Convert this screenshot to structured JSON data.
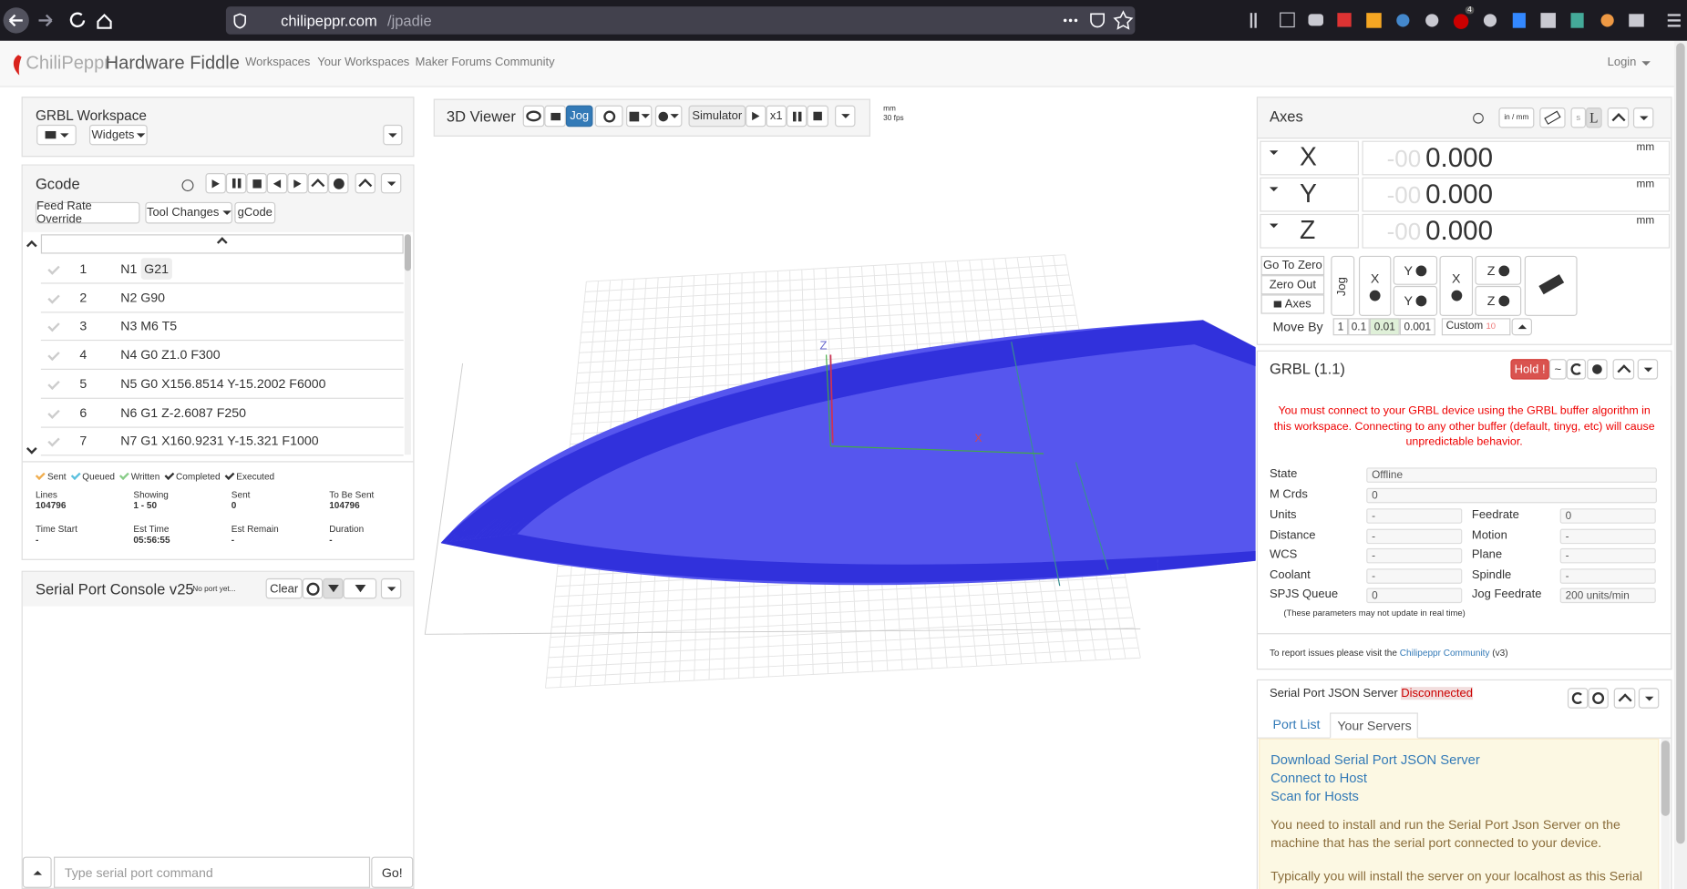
{
  "browser": {
    "host": "chilipeppr.com",
    "path": "/jpadie",
    "badge": "4"
  },
  "navbar": {
    "brand_light": "ChiliPeppr",
    "brand": "Hardware Fiddle",
    "links": [
      "Workspaces",
      "Your Workspaces",
      "Maker Forums Community"
    ],
    "login": "Login"
  },
  "workspace": {
    "title": "GRBL Workspace",
    "widgets_button": "Widgets"
  },
  "gcode": {
    "title": "Gcode",
    "tabs": [
      "Feed Rate Override",
      "Tool Changes",
      "gCode"
    ],
    "lines": [
      {
        "number": 1,
        "code": "N1",
        "token": "G21"
      },
      {
        "number": 2,
        "code": "N2 G90"
      },
      {
        "number": 3,
        "code": "N3 M6 T5"
      },
      {
        "number": 4,
        "code": "N4 G0 Z1.0 F300"
      },
      {
        "number": 5,
        "code": "N5 G0 X156.8514 Y-15.2002 F6000"
      },
      {
        "number": 6,
        "code": "N6 G1 Z-2.6087 F250"
      },
      {
        "number": 7,
        "code": "N7 G1 X160.9231 Y-15.321 F1000"
      }
    ],
    "legend": [
      "Sent",
      "Queued",
      "Written",
      "Completed",
      "Executed"
    ],
    "stats": [
      {
        "label": "Lines",
        "value": "104796"
      },
      {
        "label": "Showing",
        "value": "1 - 50"
      },
      {
        "label": "Sent",
        "value": "0"
      },
      {
        "label": "To Be Sent",
        "value": "104796"
      },
      {
        "label": "Time Start",
        "value": "-"
      },
      {
        "label": "Est Time",
        "value": "05:56:55"
      },
      {
        "label": "Est Remain",
        "value": "-"
      },
      {
        "label": "Duration",
        "value": "-"
      }
    ]
  },
  "console": {
    "title": "Serial Port Console v25",
    "status": "No port yet...",
    "clear": "Clear",
    "placeholder": "Type serial port command",
    "send": "Go!"
  },
  "viewer": {
    "title": "3D Viewer",
    "jog": "Jog",
    "simulator": "Simulator",
    "speed": "x1",
    "units": "mm",
    "fps": "30 fps",
    "axis_labels": [
      "Z",
      "X"
    ]
  },
  "axes": {
    "title": "Axes",
    "unit_toggle": "in / mm",
    "unit_buttons": [
      "s",
      "L"
    ],
    "rows": [
      {
        "axis": "X",
        "ghost": "-00",
        "value": "0.000",
        "unit": "mm"
      },
      {
        "axis": "Y",
        "ghost": "-00",
        "value": "0.000",
        "unit": "mm"
      },
      {
        "axis": "Z",
        "ghost": "-00",
        "value": "0.000",
        "unit": "mm"
      }
    ],
    "side_buttons": [
      "Go To Zero",
      "Zero Out",
      "Axes"
    ],
    "jog": "Jog",
    "jog_buttons": [
      "X",
      "Y",
      "Y",
      "X",
      "Z",
      "Z"
    ],
    "move_by": {
      "label": "Move By",
      "steps": [
        "1",
        "0.1",
        "0.01",
        "0.001"
      ],
      "custom": "Custom",
      "custom_value": "10"
    }
  },
  "grbl": {
    "title": "GRBL (1.1)",
    "hold": "Hold !",
    "tilde": "~",
    "warning": "You must connect to your GRBL device using the GRBL buffer algorithm in this workspace. Connecting to any other buffer (default, tinyg, etc) will cause unpredictable behavior.",
    "fields_wide": [
      {
        "label": "State",
        "value": "Offline"
      },
      {
        "label": "M Crds",
        "value": "0"
      }
    ],
    "fields": [
      [
        {
          "label": "Units",
          "value": "-"
        },
        {
          "label": "Feedrate",
          "value": "0"
        }
      ],
      [
        {
          "label": "Distance",
          "value": "-"
        },
        {
          "label": "Motion",
          "value": "-"
        }
      ],
      [
        {
          "label": "WCS",
          "value": "-"
        },
        {
          "label": "Plane",
          "value": "-"
        }
      ],
      [
        {
          "label": "Coolant",
          "value": "-"
        },
        {
          "label": "Spindle",
          "value": "-"
        }
      ],
      [
        {
          "label": "SPJS Queue",
          "value": "0"
        },
        {
          "label": "Jog Feedrate",
          "value": "200 units/min"
        }
      ]
    ],
    "note": "(These parameters may not update in real time)",
    "report": "To report issues please visit the",
    "report_link": "Chilipeppr Community",
    "version": "(v3)"
  },
  "spjs": {
    "title": "Serial Port JSON Server",
    "status": "Disconnected",
    "tabs": [
      "Port List",
      "Your Servers"
    ],
    "links": [
      "Download Serial Port JSON Server",
      "Connect to Host",
      "Scan for Hosts"
    ],
    "paragraphs": [
      "You need to install and run the Serial Port Json Server on the machine that has the serial port connected to your device.",
      "Typically you will install the server on your localhost as this Serial Port Widget first looks there for a local connection."
    ]
  }
}
